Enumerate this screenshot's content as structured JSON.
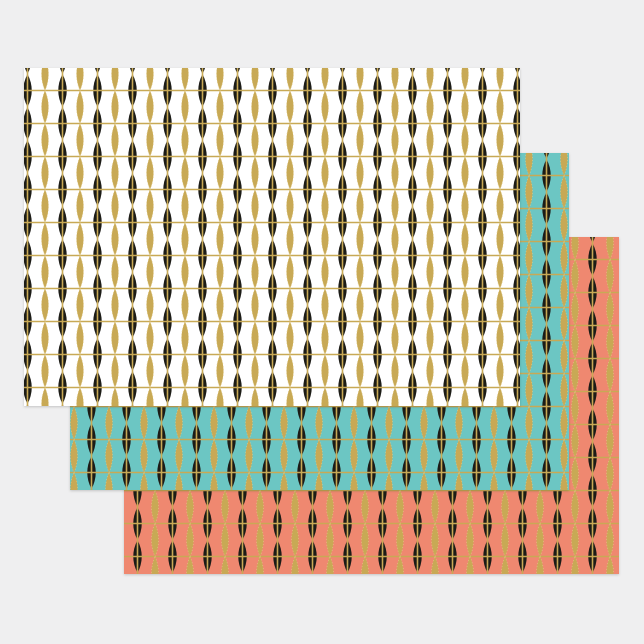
{
  "product": {
    "sheets": [
      {
        "name": "white",
        "background": "#ffffff"
      },
      {
        "name": "teal",
        "background": "#6cc6c3"
      },
      {
        "name": "coral",
        "background": "#ef8870"
      }
    ],
    "pattern": {
      "dark_color": "#1d1a18",
      "gold_color": "#c8a955",
      "gold_highlight": "#e3cc84"
    },
    "page_background": "#efeff0"
  }
}
